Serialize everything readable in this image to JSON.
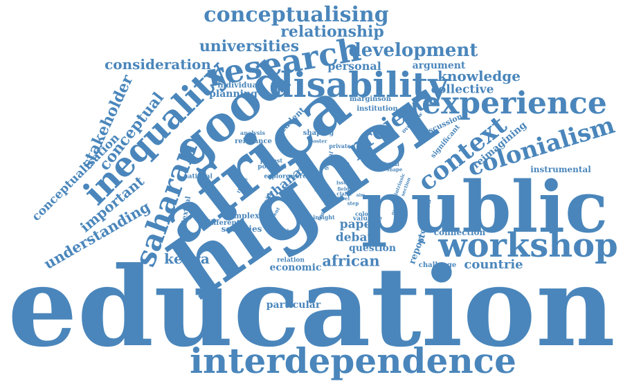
{
  "color": "#4a86bb",
  "words": [
    "education",
    "interdependence",
    "higher",
    "public",
    "africa",
    "good",
    "inequality",
    "disability",
    "research",
    "workshop",
    "experience",
    "colonialism",
    "context",
    "project",
    "saharan",
    "conceptualising",
    "relationship",
    "universities",
    "development",
    "consideration",
    "stakeholder",
    "conceptual",
    "conceptualisation",
    "understanding",
    "important",
    "knowledge",
    "collective",
    "personal",
    "argument",
    "reimagining",
    "instrumental",
    "african",
    "kenya",
    "economic",
    "countrie",
    "particular",
    "paper",
    "debate",
    "question",
    "report",
    "processes",
    "connection",
    "challenge",
    "ghana",
    "societies",
    "complex",
    "different",
    "contextual",
    "national",
    "individual",
    "planning",
    "student",
    "marginson",
    "institution",
    "discussion",
    "significant",
    "overview",
    "analysis",
    "relevance",
    "shaping",
    "poster",
    "private",
    "protest",
    "political",
    "explore",
    "more",
    "theme",
    "provide",
    "social",
    "global",
    "argue",
    "cultural",
    "shape",
    "intrinsic",
    "section",
    "output",
    "valuable",
    "colonial",
    "insight",
    "recent",
    "design",
    "relation",
    "issue",
    "field",
    "claim",
    "level",
    "step",
    "aim",
    "depth",
    "main",
    "face",
    "way",
    "year",
    "form"
  ]
}
